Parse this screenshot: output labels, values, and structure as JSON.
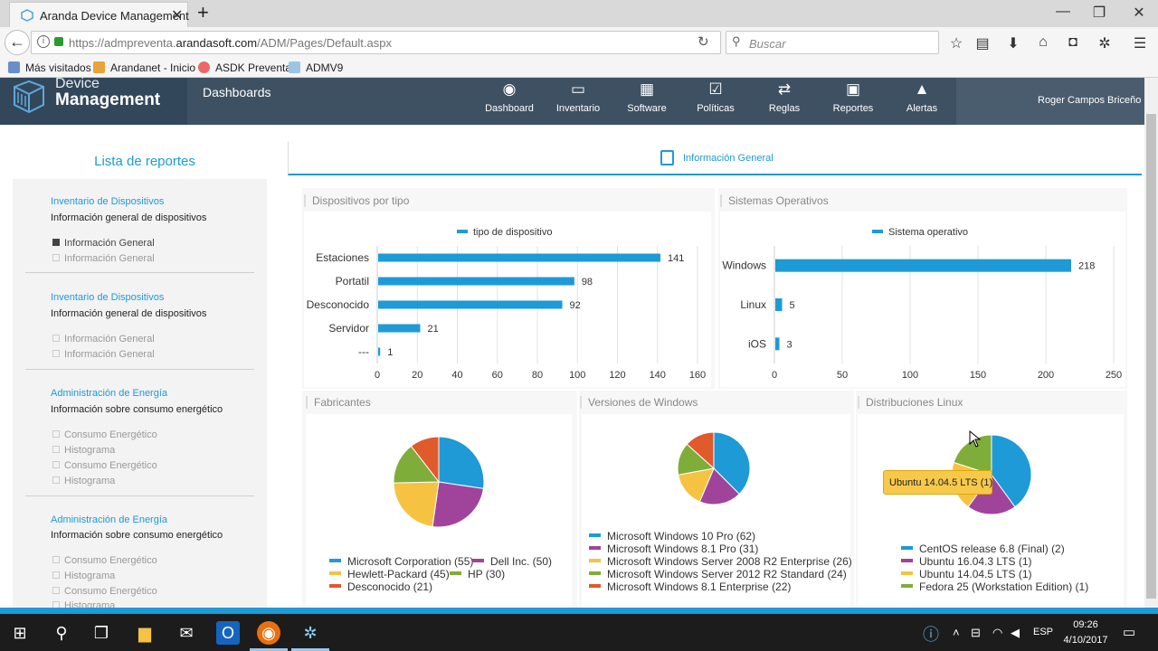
{
  "browser": {
    "tab_title": "Aranda Device Management",
    "url_prefix": "https://admpreventa.",
    "url_domain": "arandasoft.com",
    "url_path": "/ADM/Pages/Default.aspx",
    "search_placeholder": "Buscar",
    "bookmarks": [
      "Más visitados",
      "Arandanet - Inicio",
      "ASDK Preventa",
      "ADMV9"
    ]
  },
  "app": {
    "logo_line1": "Device",
    "logo_line2": "Management",
    "section_title": "Dashboards",
    "nav": [
      {
        "label": "Dashboard",
        "icon": "dashboard-icon"
      },
      {
        "label": "Inventario",
        "icon": "inventory-icon"
      },
      {
        "label": "Software",
        "icon": "software-icon"
      },
      {
        "label": "Políticas",
        "icon": "policies-icon"
      },
      {
        "label": "Reglas",
        "icon": "rules-icon"
      },
      {
        "label": "Reportes",
        "icon": "reports-icon"
      },
      {
        "label": "Alertas",
        "icon": "alerts-icon"
      }
    ],
    "user_name": "Roger Campos Briceño",
    "accent": "#1e9ad6"
  },
  "sidebar": {
    "title": "Lista de reportes",
    "sections": [
      {
        "category": "Inventario de Dispositivos",
        "title": "Información general de dispositivos",
        "items": [
          "Información General",
          "Información General"
        ],
        "active": 0
      },
      {
        "category": "Inventario de Dispositivos",
        "title": "Información general de dispositivos",
        "items": [
          "Información General",
          "Información General"
        ],
        "active": -1
      },
      {
        "category": "Administración de Energía",
        "title": "Información sobre consumo energético",
        "items": [
          "Consumo Energético",
          "Histograma",
          "Consumo Energético",
          "Histograma"
        ],
        "active": -1
      },
      {
        "category": "Administración de Energía",
        "title": "Información sobre consumo energético",
        "items": [
          "Consumo Energético",
          "Histograma",
          "Consumo Energético",
          "Histograma"
        ],
        "active": -1
      }
    ]
  },
  "main": {
    "tab_label": "Información General",
    "panels": {
      "devices": "Dispositivos por tipo",
      "os": "Sistemas Operativos",
      "manufacturers": "Fabricantes",
      "windows": "Versiones de Windows",
      "linux": "Distribuciones Linux"
    },
    "tooltip": "Ubuntu 14.04.5 LTS (1)"
  },
  "chart_data": [
    {
      "type": "bar",
      "orientation": "horizontal",
      "series_name": "tipo de dispositivo",
      "categories": [
        "Estaciones",
        "Portatil",
        "Desconocido",
        "Servidor",
        "---"
      ],
      "values": [
        141,
        98,
        92,
        21,
        1
      ],
      "xlim": [
        0,
        160
      ],
      "xticks": [
        "0",
        "20",
        "40",
        "60",
        "80",
        "100",
        "120",
        "140",
        "160"
      ],
      "grid": true,
      "legend": "top-center"
    },
    {
      "type": "bar",
      "orientation": "horizontal",
      "series_name": "Sistema operativo",
      "categories": [
        "Windows",
        "Linux",
        "iOS"
      ],
      "values": [
        218,
        5,
        3
      ],
      "xlim": [
        0,
        250
      ],
      "xticks": [
        "0",
        "50",
        "100",
        "150",
        "200",
        "250"
      ],
      "grid": true,
      "legend": "top-center"
    },
    {
      "type": "pie",
      "slices": [
        {
          "label": "Microsoft Corporation (55)",
          "value": 55,
          "color": "#1e9ad6"
        },
        {
          "label": "Dell Inc. (50)",
          "value": 50,
          "color": "#a0449b"
        },
        {
          "label": "Hewlett-Packard (45)",
          "value": 45,
          "color": "#f5c242"
        },
        {
          "label": "HP (30)",
          "value": 30,
          "color": "#7fad3a"
        },
        {
          "label": "Desconocido (21)",
          "value": 21,
          "color": "#e05a2b"
        }
      ],
      "legend": "bottom"
    },
    {
      "type": "pie",
      "slices": [
        {
          "label": "Microsoft Windows 10 Pro (62)",
          "value": 62,
          "color": "#1e9ad6"
        },
        {
          "label": "Microsoft Windows 8.1 Pro (31)",
          "value": 31,
          "color": "#a0449b"
        },
        {
          "label": "Microsoft Windows Server 2008 R2 Enterprise (26)",
          "value": 26,
          "color": "#f5c242"
        },
        {
          "label": "Microsoft Windows Server 2012 R2 Standard (24)",
          "value": 24,
          "color": "#7fad3a"
        },
        {
          "label": "Microsoft Windows 8.1 Enterprise (22)",
          "value": 22,
          "color": "#e05a2b"
        }
      ],
      "legend": "bottom"
    },
    {
      "type": "pie",
      "slices": [
        {
          "label": "CentOS release 6.8 (Final) (2)",
          "value": 2,
          "color": "#1e9ad6"
        },
        {
          "label": "Ubuntu 16.04.3 LTS (1)",
          "value": 1,
          "color": "#a0449b"
        },
        {
          "label": "Ubuntu 14.04.5 LTS (1)",
          "value": 1,
          "color": "#f5c242"
        },
        {
          "label": "Fedora 25 (Workstation Edition) (1)",
          "value": 1,
          "color": "#7fad3a"
        }
      ],
      "legend": "bottom"
    }
  ],
  "taskbar": {
    "lang": "ESP",
    "time": "09:26",
    "date": "4/10/2017"
  }
}
